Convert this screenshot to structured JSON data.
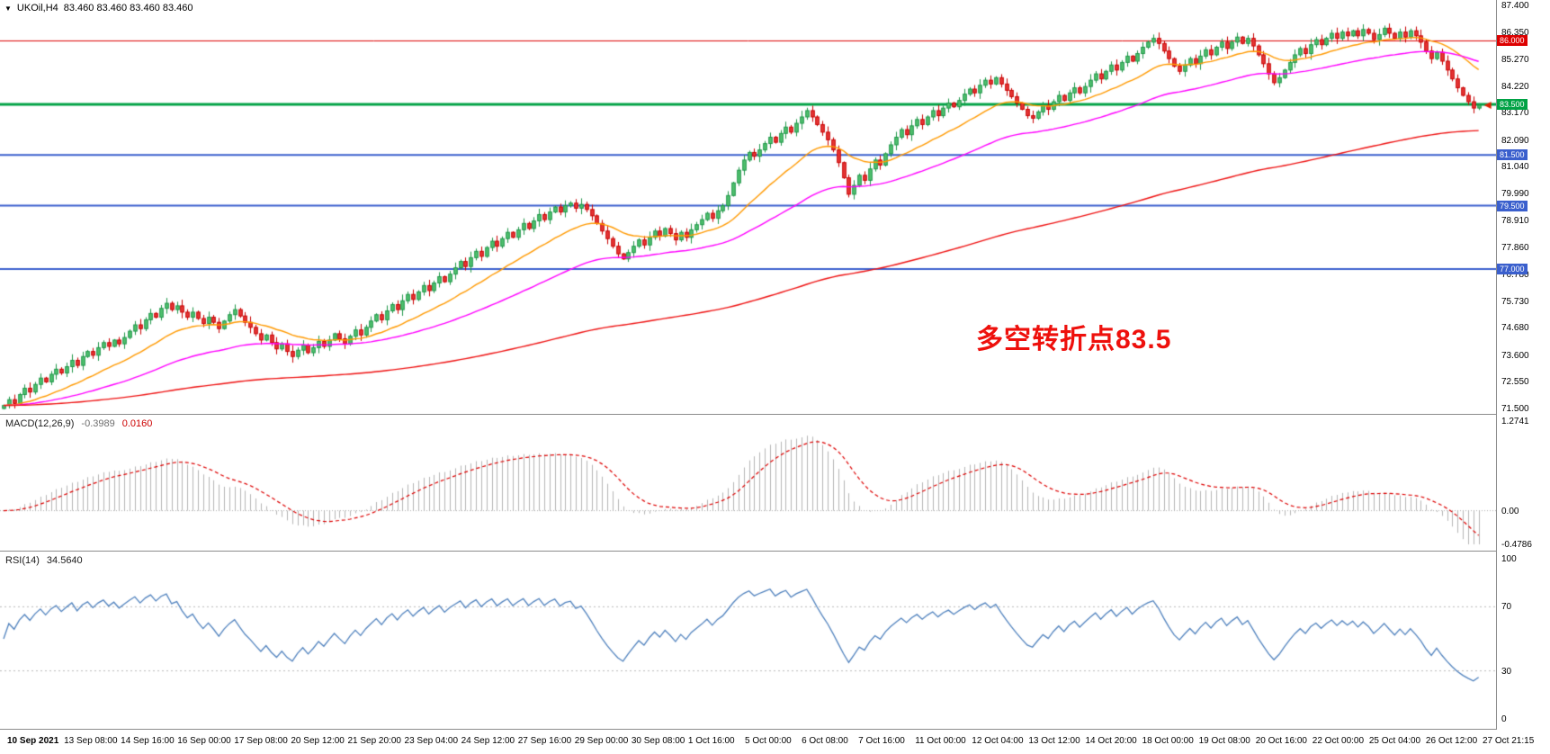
{
  "header": {
    "symbol": "UKOil,H4",
    "ohlc": "83.460 83.460 83.460 83.460"
  },
  "icons": {
    "symbol_dropdown": "▼"
  },
  "chart_data": [
    {
      "type": "candlestick",
      "title": "UKOil H4 candlestick chart",
      "y_range": [
        71.5,
        87.4
      ],
      "y_ticks": [
        "87.400",
        "86.350",
        "85.270",
        "84.220",
        "83.170",
        "82.090",
        "81.040",
        "79.990",
        "78.910",
        "77.860",
        "76.780",
        "75.730",
        "74.680",
        "73.600",
        "72.550",
        "71.500"
      ],
      "x_labels": [
        "10 Sep 2021",
        "13 Sep 08:00",
        "14 Sep 16:00",
        "16 Sep 00:00",
        "17 Sep 08:00",
        "20 Sep 12:00",
        "21 Sep 20:00",
        "23 Sep 04:00",
        "24 Sep 12:00",
        "27 Sep 16:00",
        "29 Sep 00:00",
        "30 Sep 08:00",
        "1 Oct 16:00",
        "5 Oct 00:00",
        "6 Oct 08:00",
        "7 Oct 16:00",
        "11 Oct 00:00",
        "12 Oct 04:00",
        "13 Oct 12:00",
        "14 Oct 20:00",
        "18 Oct 00:00",
        "19 Oct 08:00",
        "20 Oct 16:00",
        "22 Oct 00:00",
        "25 Oct 04:00",
        "26 Oct 12:00",
        "27 Oct 21:15"
      ],
      "first_open": 71.5,
      "closes": [
        71.62,
        71.85,
        71.7,
        72.05,
        72.3,
        72.15,
        72.45,
        72.7,
        72.55,
        72.85,
        73.05,
        72.9,
        73.15,
        73.4,
        73.2,
        73.55,
        73.75,
        73.6,
        73.9,
        74.1,
        73.95,
        74.2,
        74.05,
        74.3,
        74.55,
        74.8,
        74.65,
        75.0,
        75.25,
        75.1,
        75.45,
        75.65,
        75.4,
        75.55,
        75.3,
        75.1,
        75.3,
        75.05,
        74.85,
        75.1,
        74.9,
        74.65,
        74.95,
        75.2,
        75.4,
        75.15,
        74.9,
        74.7,
        74.45,
        74.2,
        74.4,
        74.1,
        73.85,
        74.05,
        73.75,
        73.55,
        73.8,
        74.0,
        73.7,
        73.9,
        74.15,
        73.95,
        74.2,
        74.45,
        74.25,
        74.05,
        74.35,
        74.6,
        74.4,
        74.7,
        74.95,
        75.2,
        75.0,
        75.35,
        75.6,
        75.4,
        75.75,
        76.0,
        75.8,
        76.1,
        76.35,
        76.15,
        76.45,
        76.7,
        76.5,
        76.8,
        77.05,
        77.3,
        77.1,
        77.45,
        77.7,
        77.5,
        77.85,
        78.1,
        77.9,
        78.2,
        78.45,
        78.25,
        78.55,
        78.8,
        78.6,
        78.9,
        79.15,
        78.95,
        79.25,
        79.45,
        79.25,
        79.5,
        79.6,
        79.4,
        79.55,
        79.35,
        79.1,
        78.8,
        78.5,
        78.2,
        77.9,
        77.6,
        77.4,
        77.65,
        77.9,
        78.15,
        77.95,
        78.25,
        78.5,
        78.3,
        78.6,
        78.4,
        78.15,
        78.45,
        78.25,
        78.55,
        78.75,
        78.95,
        79.2,
        79.0,
        79.3,
        79.5,
        79.9,
        80.4,
        80.9,
        81.3,
        81.6,
        81.45,
        81.7,
        81.95,
        82.2,
        82.0,
        82.35,
        82.6,
        82.4,
        82.75,
        83.0,
        83.25,
        83.0,
        82.7,
        82.4,
        82.1,
        81.7,
        81.2,
        80.6,
        79.95,
        80.3,
        80.7,
        80.5,
        80.95,
        81.3,
        81.1,
        81.55,
        81.9,
        82.2,
        82.5,
        82.3,
        82.65,
        82.9,
        82.7,
        83.0,
        83.25,
        83.05,
        83.35,
        83.55,
        83.4,
        83.65,
        83.9,
        84.1,
        83.95,
        84.25,
        84.45,
        84.3,
        84.55,
        84.3,
        84.05,
        83.8,
        83.55,
        83.3,
        83.05,
        82.95,
        83.2,
        83.45,
        83.3,
        83.6,
        83.85,
        83.65,
        83.95,
        84.15,
        83.95,
        84.2,
        84.45,
        84.7,
        84.5,
        84.8,
        85.05,
        84.85,
        85.15,
        85.4,
        85.2,
        85.5,
        85.75,
        85.95,
        86.1,
        85.9,
        85.6,
        85.3,
        85.0,
        84.8,
        85.05,
        85.3,
        85.1,
        85.4,
        85.65,
        85.45,
        85.75,
        85.95,
        85.7,
        85.95,
        86.15,
        85.9,
        86.1,
        85.8,
        85.45,
        85.1,
        84.7,
        84.35,
        84.55,
        84.85,
        85.15,
        85.45,
        85.7,
        85.5,
        85.85,
        86.05,
        85.85,
        86.1,
        86.3,
        86.1,
        86.35,
        86.2,
        86.4,
        86.2,
        86.45,
        86.3,
        86.05,
        86.25,
        86.5,
        86.3,
        86.1,
        86.35,
        86.15,
        86.4,
        86.2,
        85.95,
        85.6,
        85.3,
        85.55,
        85.2,
        84.85,
        84.5,
        84.15,
        83.85,
        83.6,
        83.35,
        83.46
      ],
      "up_color": "#1e9648",
      "up_fill": "#4fc06e",
      "down_color": "#c80000",
      "down_fill": "#e53535",
      "moving_averages": [
        {
          "name": "ma-fast",
          "period": 20,
          "color": "#ff9900"
        },
        {
          "name": "ma-medium",
          "period": 55,
          "color": "#ff00ff"
        },
        {
          "name": "ma-slow",
          "period": 200,
          "color": "#ee1111"
        }
      ],
      "hlines": [
        {
          "price": 86.0,
          "label": "86.000",
          "color": "#dd0000",
          "width": 1
        },
        {
          "price": 83.5,
          "label": "83.500",
          "color": "#00a245",
          "width": 3
        },
        {
          "price": 81.5,
          "label": "81.500",
          "color": "#3a5fcd",
          "width": 2
        },
        {
          "price": 79.5,
          "label": "79.500",
          "color": "#3a5fcd",
          "width": 2
        },
        {
          "price": 77.0,
          "label": "77.000",
          "color": "#3a5fcd",
          "width": 2
        }
      ],
      "last_price_marker": {
        "price": 83.46,
        "color": "#dd2200"
      },
      "annotation": {
        "text": "多空转折点83.5",
        "color": "#ee100c"
      }
    },
    {
      "type": "macd",
      "label": "MACD(12,26,9)",
      "value_main": "-0.3989",
      "value_signal": "0.0160",
      "params": [
        12,
        26,
        9
      ],
      "y_range": [
        -0.4786,
        1.2741
      ],
      "y_ticks": [
        "1.2741",
        "0.00",
        "-0.4786"
      ],
      "hist_color": "#b4b4b4",
      "signal_color": "#dd0000"
    },
    {
      "type": "rsi",
      "label": "RSI(14)",
      "value": "34.5640",
      "period": 14,
      "y_range": [
        0,
        100
      ],
      "levels": [
        70,
        30
      ],
      "y_ticks": [
        "100",
        "70",
        "30",
        "0"
      ],
      "line_color": "#4f81bd",
      "level_color": "#b9b9b9"
    }
  ]
}
